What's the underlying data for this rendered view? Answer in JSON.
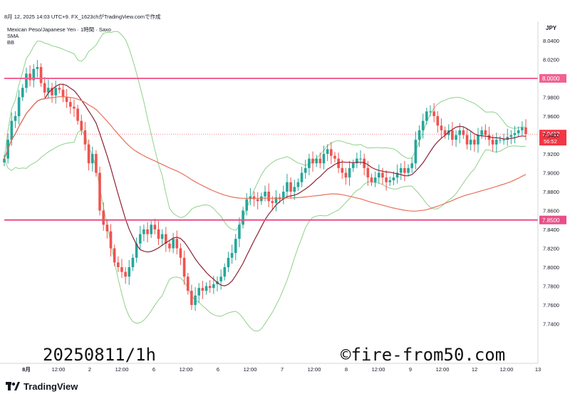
{
  "header": {
    "date_line": "8月 12, 2025 14:03 UTC+9.  FX_1623chがTradingView.comで作成",
    "symbol_line": "Mexican Peso/Japanese Yen · 1時間 · Saxo",
    "indicator1": "SMA",
    "indicator2": "BB"
  },
  "watermark": {
    "left": "20250811/1h",
    "right": "©fire-from50.com"
  },
  "footer": {
    "brand": "TradingView"
  },
  "chart_data": {
    "type": "candlestick",
    "currency_label": "JPY",
    "ylim": [
      7.73,
      8.07
    ],
    "y_ticks": [
      "8.0400",
      "8.0200",
      "7.9800",
      "7.9600",
      "7.9400",
      "7.9200",
      "7.9000",
      "7.8800",
      "7.8600",
      "7.8400",
      "7.8200",
      "7.8000",
      "7.7800",
      "7.7600",
      "7.7400"
    ],
    "x_ticks": [
      "8月",
      "12:00",
      "2",
      "12:00",
      "6",
      "12:00",
      "6",
      "12:00",
      "7",
      "12:00",
      "8",
      "12:00",
      "9",
      "12:00",
      "12",
      "12:00",
      "13"
    ],
    "horizontal_lines": [
      {
        "value": 8.0,
        "label": "8.0000",
        "color": "#f06292"
      },
      {
        "value": 7.85,
        "label": "7.8500",
        "color": "#e84f88"
      }
    ],
    "last_price": {
      "label": "7.9412",
      "countdown": "56:52",
      "color": "#f23645"
    },
    "colors": {
      "up": "#26a69a",
      "down": "#ef5350",
      "sma_short": "#8b2232",
      "sma_long": "#e8705a",
      "bb": "#8fd18a"
    },
    "closes": [
      7.915,
      7.935,
      7.955,
      7.96,
      7.98,
      7.99,
      8.005,
      7.998,
      8.01,
      8.012,
      7.995,
      7.985,
      7.99,
      7.982,
      7.99,
      7.988,
      7.98,
      7.975,
      7.97,
      7.968,
      7.955,
      7.945,
      7.93,
      7.91,
      7.92,
      7.9,
      7.86,
      7.845,
      7.838,
      7.82,
      7.805,
      7.8,
      7.795,
      7.79,
      7.8,
      7.81,
      7.825,
      7.835,
      7.84,
      7.835,
      7.845,
      7.84,
      7.83,
      7.835,
      7.825,
      7.82,
      7.83,
      7.82,
      7.81,
      7.79,
      7.775,
      7.76,
      7.77,
      7.778,
      7.775,
      7.78,
      7.778,
      7.782,
      7.785,
      7.79,
      7.8,
      7.81,
      7.815,
      7.83,
      7.845,
      7.86,
      7.872,
      7.875,
      7.872,
      7.87,
      7.875,
      7.88,
      7.87,
      7.868,
      7.874,
      7.872,
      7.88,
      7.89,
      7.88,
      7.885,
      7.89,
      7.9,
      7.905,
      7.915,
      7.91,
      7.915,
      7.91,
      7.92,
      7.925,
      7.918,
      7.915,
      7.905,
      7.9,
      7.895,
      7.905,
      7.91,
      7.915,
      7.915,
      7.905,
      7.895,
      7.89,
      7.895,
      7.9,
      7.895,
      7.89,
      7.892,
      7.895,
      7.9,
      7.905,
      7.9,
      7.905,
      7.91,
      7.935,
      7.945,
      7.955,
      7.965,
      7.965,
      7.96,
      7.95,
      7.945,
      7.94,
      7.945,
      7.935,
      7.94,
      7.945,
      7.94,
      7.93,
      7.935,
      7.93,
      7.94,
      7.945,
      7.94,
      7.935,
      7.93,
      7.935,
      7.935,
      7.935,
      7.938,
      7.94,
      7.942,
      7.945,
      7.948,
      7.941
    ]
  }
}
